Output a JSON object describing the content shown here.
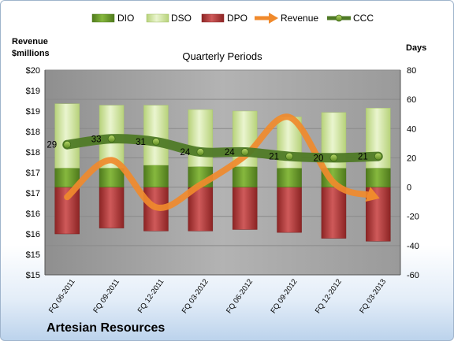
{
  "chart_data": {
    "type": "bar",
    "title": "",
    "subtitle": "Quarterly Periods",
    "company": "Artesian Resources",
    "categories": [
      "FQ 06-2011",
      "FQ 09-2011",
      "FQ 12-2011",
      "FQ 03-2012",
      "FQ 06-2012",
      "FQ 09-2012",
      "FQ 12-2012",
      "FQ 03-2013"
    ],
    "left_axis": {
      "title_line1": "Revenue",
      "title_line2": "$millions",
      "tick_labels": [
        "$20",
        "$19",
        "$19",
        "$18",
        "$18",
        "$17",
        "$17",
        "$16",
        "$16",
        "$15",
        "$15"
      ],
      "ylim": [
        15,
        20
      ]
    },
    "right_axis": {
      "title": "Days",
      "tick_labels": [
        "80",
        "60",
        "40",
        "20",
        "0",
        "-20",
        "-40",
        "-60"
      ],
      "ylim": [
        -60,
        80
      ]
    },
    "series": [
      {
        "name": "DIO",
        "kind": "bar",
        "color": "#6b9a2a",
        "values": [
          13,
          13,
          15,
          14,
          14,
          13,
          13,
          13
        ]
      },
      {
        "name": "DSO",
        "kind": "bar",
        "color": "#d5e8a8",
        "values": [
          44,
          43,
          41,
          39,
          38,
          35,
          38,
          41
        ]
      },
      {
        "name": "DPO",
        "kind": "bar",
        "color": "#b03a3a",
        "values": [
          -32,
          -28,
          -30,
          -30,
          -29,
          -31,
          -35,
          -37
        ]
      },
      {
        "name": "Revenue",
        "kind": "arrow-line",
        "color": "#f08a2c",
        "values": [
          16.9,
          17.8,
          16.65,
          17.2,
          17.9,
          18.85,
          17.25,
          16.88
        ]
      },
      {
        "name": "CCC",
        "kind": "line",
        "color": "#4f7a26",
        "values": [
          29,
          33,
          31,
          24,
          24,
          21,
          20,
          21
        ],
        "labels": [
          "29",
          "33",
          "31",
          "24",
          "24",
          "21",
          "20",
          "21"
        ]
      }
    ],
    "legend_position": "top",
    "grid": true
  },
  "colors": {
    "plot_bg": "#a3a3a3",
    "grid": "#8c8c8c"
  }
}
